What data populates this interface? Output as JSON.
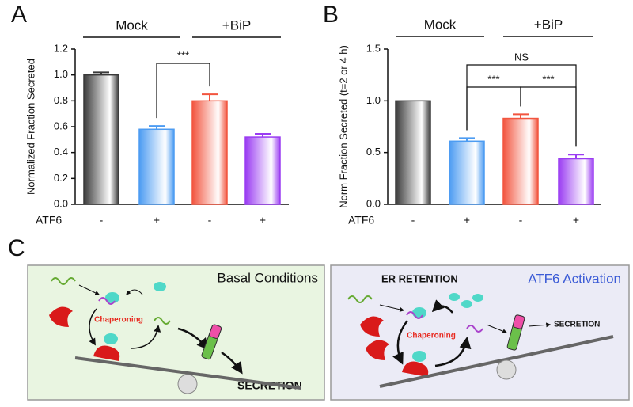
{
  "chart_data": [
    {
      "type": "bar",
      "ylabel": "Normalized Fraction Secreted",
      "category_axis_label": "ATF6",
      "groups": [
        "Mock",
        "+BiP"
      ],
      "categories": [
        "-",
        "+",
        "-",
        "+"
      ],
      "values": [
        1.0,
        0.58,
        0.8,
        0.52
      ],
      "errors": [
        0.02,
        0.025,
        0.05,
        0.025
      ],
      "colors": [
        "#3a3a3a",
        "#4d9cf2",
        "#f2553f",
        "#9a3cf2"
      ],
      "ylim": [
        0,
        1.2
      ],
      "yticks": [
        {
          "value": 0,
          "label": "0.0"
        },
        0.2,
        0.4,
        0.6,
        0.8,
        {
          "value": 1,
          "label": "1.0"
        },
        1.2
      ],
      "annotations": [
        "***"
      ]
    },
    {
      "type": "bar",
      "ylabel": "Norm Fraction Secreted (t=2 or 4 h)",
      "category_axis_label": "ATF6",
      "groups": [
        "Mock",
        "+BiP"
      ],
      "categories": [
        "-",
        "+",
        "-",
        "+"
      ],
      "values": [
        1.0,
        0.61,
        0.83,
        0.44
      ],
      "errors": [
        0,
        0.03,
        0.04,
        0.04
      ],
      "colors": [
        "#3a3a3a",
        "#4d9cf2",
        "#f2553f",
        "#9a3cf2"
      ],
      "ylim": [
        0,
        1.5
      ],
      "yticks": [
        {
          "value": 0,
          "label": "0.0"
        },
        0.5,
        {
          "value": 1,
          "label": "1.0"
        },
        1.5
      ],
      "annotations": [
        "NS",
        "***",
        "***"
      ]
    }
  ],
  "panels": [
    "A",
    "B",
    "C"
  ],
  "diagram": {
    "left": {
      "title": "Basal Conditions",
      "process": "Chaperoning",
      "outcome": "SECRETION"
    },
    "right": {
      "header": "ER RETENTION",
      "title": "ATF6 Activation",
      "process": "Chaperoning",
      "outcome": "SECRETION"
    }
  }
}
